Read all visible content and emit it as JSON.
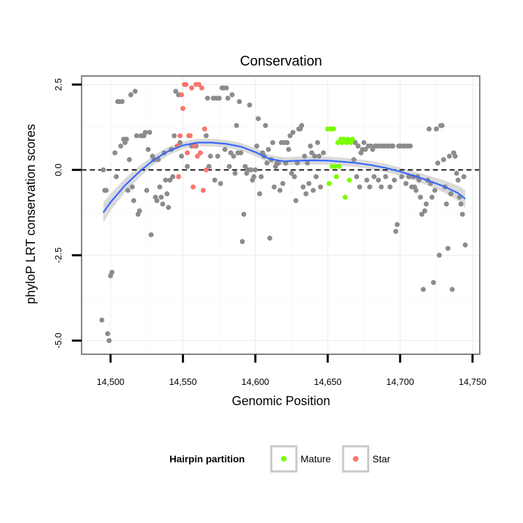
{
  "chart_data": {
    "type": "scatter",
    "title": "Conservation",
    "xlabel": "Genomic Position",
    "ylabel": "phyloP LRT conservation scores",
    "xlim": [
      14480,
      14755
    ],
    "ylim": [
      -5.4,
      2.75
    ],
    "x_ticks": [
      14500,
      14550,
      14600,
      14650,
      14700,
      14750
    ],
    "x_tick_labels": [
      "14,500",
      "14,550",
      "14,600",
      "14,650",
      "14,700",
      "14,750"
    ],
    "y_ticks": [
      2.5,
      0.0,
      -2.5,
      -5.0
    ],
    "y_tick_labels": [
      "2.5",
      "0.0",
      "-2.5",
      "-5.0"
    ],
    "reference_line": {
      "y": 0.0,
      "style": "dashed"
    },
    "legend": {
      "title": "Hairpin partition",
      "position": "bottom",
      "entries": [
        {
          "label": "Mature",
          "color": "#7cfc00"
        },
        {
          "label": "Star",
          "color": "#f8766d"
        }
      ]
    },
    "colors": {
      "other": "#8c8c8c",
      "mature": "#7cfc00",
      "star": "#f8766d",
      "smooth": "#3366ff",
      "ribbon": "#d3d3d3"
    },
    "series": [
      {
        "name": "Other",
        "points": [
          [
            14494,
            -4.4
          ],
          [
            14495,
            0.0
          ],
          [
            14496,
            -0.6
          ],
          [
            14497,
            -0.6
          ],
          [
            14498,
            -4.8
          ],
          [
            14499,
            -5.0
          ],
          [
            14500,
            -3.1
          ],
          [
            14501,
            -3.0
          ],
          [
            14503,
            0.5
          ],
          [
            14504,
            -0.2
          ],
          [
            14505,
            2.0
          ],
          [
            14506,
            2.0
          ],
          [
            14507,
            0.7
          ],
          [
            14508,
            2.0
          ],
          [
            14509,
            0.9
          ],
          [
            14510,
            0.8
          ],
          [
            14511,
            0.9
          ],
          [
            14512,
            -0.6
          ],
          [
            14513,
            0.3
          ],
          [
            14514,
            2.2
          ],
          [
            14515,
            -0.5
          ],
          [
            14516,
            -0.9
          ],
          [
            14517,
            2.3
          ],
          [
            14518,
            1.0
          ],
          [
            14519,
            -1.3
          ],
          [
            14520,
            -1.2
          ],
          [
            14521,
            1.0
          ],
          [
            14522,
            1.0
          ],
          [
            14523,
            1.0
          ],
          [
            14524,
            1.1
          ],
          [
            14525,
            -0.6
          ],
          [
            14526,
            0.6
          ],
          [
            14527,
            1.1
          ],
          [
            14528,
            -1.9
          ],
          [
            14529,
            0.4
          ],
          [
            14530,
            0.3
          ],
          [
            14531,
            -0.8
          ],
          [
            14532,
            -0.9
          ],
          [
            14533,
            0.3
          ],
          [
            14534,
            -0.5
          ],
          [
            14535,
            -0.8
          ],
          [
            14536,
            -1.0
          ],
          [
            14537,
            0.5
          ],
          [
            14538,
            -0.3
          ],
          [
            14539,
            -0.7
          ],
          [
            14540,
            -1.1
          ],
          [
            14541,
            -0.3
          ],
          [
            14542,
            0.6
          ],
          [
            14543,
            -0.2
          ],
          [
            14544,
            1.0
          ],
          [
            14545,
            2.3
          ],
          [
            14547,
            2.2
          ],
          [
            14548,
            0.8
          ],
          [
            14549,
            0.4
          ],
          [
            14553,
            0.1
          ],
          [
            14556,
            0.7
          ],
          [
            14559,
            0.7
          ],
          [
            14566,
            1.0
          ],
          [
            14567,
            2.1
          ],
          [
            14568,
            0.1
          ],
          [
            14569,
            0.4
          ],
          [
            14571,
            2.1
          ],
          [
            14572,
            -0.3
          ],
          [
            14573,
            2.1
          ],
          [
            14574,
            0.4
          ],
          [
            14575,
            2.1
          ],
          [
            14576,
            -0.4
          ],
          [
            14577,
            2.4
          ],
          [
            14578,
            2.4
          ],
          [
            14579,
            0.6
          ],
          [
            14580,
            2.4
          ],
          [
            14581,
            2.1
          ],
          [
            14582,
            0.1
          ],
          [
            14583,
            0.5
          ],
          [
            14584,
            2.2
          ],
          [
            14585,
            0.4
          ],
          [
            14586,
            -0.1
          ],
          [
            14587,
            1.3
          ],
          [
            14588,
            0.5
          ],
          [
            14589,
            2.0
          ],
          [
            14590,
            0.5
          ],
          [
            14591,
            -2.1
          ],
          [
            14592,
            -1.3
          ],
          [
            14593,
            0.1
          ],
          [
            14594,
            -0.1
          ],
          [
            14595,
            0.0
          ],
          [
            14596,
            1.9
          ],
          [
            14597,
            0.0
          ],
          [
            14598,
            -0.3
          ],
          [
            14599,
            -0.2
          ],
          [
            14600,
            0.0
          ],
          [
            14601,
            0.7
          ],
          [
            14602,
            1.5
          ],
          [
            14603,
            -0.7
          ],
          [
            14604,
            -0.2
          ],
          [
            14605,
            0.5
          ],
          [
            14606,
            0.4
          ],
          [
            14607,
            1.3
          ],
          [
            14608,
            0.2
          ],
          [
            14609,
            0.6
          ],
          [
            14610,
            -2.0
          ],
          [
            14611,
            0.3
          ],
          [
            14612,
            0.8
          ],
          [
            14613,
            -0.5
          ],
          [
            14614,
            0.1
          ],
          [
            14615,
            0.2
          ],
          [
            14616,
            0.2
          ],
          [
            14617,
            -0.6
          ],
          [
            14618,
            0.8
          ],
          [
            14619,
            -0.4
          ],
          [
            14620,
            0.8
          ],
          [
            14621,
            0.2
          ],
          [
            14622,
            0.8
          ],
          [
            14623,
            0.6
          ],
          [
            14624,
            1.0
          ],
          [
            14625,
            -0.1
          ],
          [
            14626,
            1.1
          ],
          [
            14627,
            -0.2
          ],
          [
            14628,
            -0.9
          ],
          [
            14629,
            0.2
          ],
          [
            14630,
            1.2
          ],
          [
            14631,
            1.2
          ],
          [
            14632,
            1.3
          ],
          [
            14633,
            -0.5
          ],
          [
            14634,
            0.4
          ],
          [
            14635,
            -0.7
          ],
          [
            14636,
            0.2
          ],
          [
            14637,
            -0.4
          ],
          [
            14638,
            0.7
          ],
          [
            14639,
            0.5
          ],
          [
            14640,
            -0.6
          ],
          [
            14641,
            0.4
          ],
          [
            14642,
            -0.2
          ],
          [
            14643,
            0.8
          ],
          [
            14644,
            0.4
          ],
          [
            14645,
            -0.5
          ],
          [
            14647,
            0.5
          ],
          [
            14668,
            0.3
          ],
          [
            14669,
            0.8
          ],
          [
            14670,
            -0.2
          ],
          [
            14671,
            0.7
          ],
          [
            14672,
            -0.5
          ],
          [
            14673,
            0.5
          ],
          [
            14674,
            0.6
          ],
          [
            14675,
            0.8
          ],
          [
            14676,
            0.6
          ],
          [
            14677,
            -0.3
          ],
          [
            14678,
            0.7
          ],
          [
            14679,
            -0.5
          ],
          [
            14680,
            0.7
          ],
          [
            14681,
            0.6
          ],
          [
            14682,
            -0.2
          ],
          [
            14683,
            0.7
          ],
          [
            14684,
            0.7
          ],
          [
            14685,
            -0.3
          ],
          [
            14686,
            0.7
          ],
          [
            14687,
            -0.5
          ],
          [
            14688,
            0.7
          ],
          [
            14689,
            0.7
          ],
          [
            14690,
            -0.2
          ],
          [
            14691,
            0.7
          ],
          [
            14692,
            0.7
          ],
          [
            14693,
            -0.5
          ],
          [
            14694,
            0.7
          ],
          [
            14695,
            0.7
          ],
          [
            14696,
            -0.3
          ],
          [
            14697,
            -1.8
          ],
          [
            14698,
            -1.6
          ],
          [
            14699,
            0.7
          ],
          [
            14700,
            0.7
          ],
          [
            14701,
            -0.2
          ],
          [
            14702,
            0.7
          ],
          [
            14703,
            0.7
          ],
          [
            14704,
            -0.4
          ],
          [
            14705,
            0.7
          ],
          [
            14706,
            -0.2
          ],
          [
            14707,
            0.7
          ],
          [
            14708,
            -0.5
          ],
          [
            14709,
            -0.2
          ],
          [
            14710,
            -0.5
          ],
          [
            14711,
            -0.6
          ],
          [
            14712,
            -0.2
          ],
          [
            14713,
            -0.3
          ],
          [
            14714,
            -0.8
          ],
          [
            14715,
            -1.3
          ],
          [
            14716,
            -3.5
          ],
          [
            14717,
            -1.2
          ],
          [
            14718,
            -1.0
          ],
          [
            14719,
            -0.3
          ],
          [
            14720,
            1.2
          ],
          [
            14721,
            -0.4
          ],
          [
            14722,
            -0.8
          ],
          [
            14723,
            -3.3
          ],
          [
            14724,
            -0.6
          ],
          [
            14725,
            1.2
          ],
          [
            14726,
            0.2
          ],
          [
            14727,
            -2.5
          ],
          [
            14728,
            1.3
          ],
          [
            14729,
            1.3
          ],
          [
            14730,
            0.3
          ],
          [
            14731,
            -0.5
          ],
          [
            14732,
            -1.0
          ],
          [
            14733,
            -2.3
          ],
          [
            14734,
            0.4
          ],
          [
            14735,
            -0.7
          ],
          [
            14736,
            -3.5
          ],
          [
            14737,
            0.5
          ],
          [
            14738,
            0.4
          ],
          [
            14739,
            -0.1
          ],
          [
            14740,
            -0.3
          ],
          [
            14741,
            -0.8
          ],
          [
            14742,
            -1.0
          ],
          [
            14743,
            -1.3
          ],
          [
            14744,
            -0.2
          ],
          [
            14745,
            -2.2
          ]
        ]
      },
      {
        "name": "Mature",
        "points": [
          [
            14650,
            1.2
          ],
          [
            14651,
            -0.4
          ],
          [
            14652,
            1.2
          ],
          [
            14653,
            0.1
          ],
          [
            14654,
            1.2
          ],
          [
            14655,
            0.1
          ],
          [
            14656,
            -0.2
          ],
          [
            14657,
            0.8
          ],
          [
            14658,
            0.1
          ],
          [
            14659,
            0.9
          ],
          [
            14660,
            0.8
          ],
          [
            14661,
            0.9
          ],
          [
            14662,
            -0.8
          ],
          [
            14663,
            0.8
          ],
          [
            14664,
            0.9
          ],
          [
            14665,
            -0.3
          ],
          [
            14666,
            0.8
          ],
          [
            14667,
            0.9
          ]
        ]
      },
      {
        "name": "Star",
        "points": [
          [
            14546,
            0.7
          ],
          [
            14547,
            -0.2
          ],
          [
            14548,
            1.0
          ],
          [
            14549,
            2.2
          ],
          [
            14550,
            1.8
          ],
          [
            14551,
            2.5
          ],
          [
            14552,
            2.5
          ],
          [
            14553,
            0.5
          ],
          [
            14554,
            1.0
          ],
          [
            14555,
            1.0
          ],
          [
            14556,
            2.4
          ],
          [
            14557,
            -0.5
          ],
          [
            14558,
            0.7
          ],
          [
            14559,
            2.5
          ],
          [
            14560,
            0.4
          ],
          [
            14561,
            2.5
          ],
          [
            14562,
            0.5
          ],
          [
            14563,
            2.4
          ],
          [
            14564,
            -0.6
          ],
          [
            14565,
            1.2
          ],
          [
            14566,
            0.0
          ]
        ]
      }
    ],
    "smooth": {
      "x": [
        14495,
        14500,
        14510,
        14520,
        14530,
        14540,
        14550,
        14560,
        14570,
        14580,
        14590,
        14600,
        14610,
        14620,
        14630,
        14640,
        14650,
        14660,
        14670,
        14680,
        14690,
        14700,
        14710,
        14720,
        14730,
        14740,
        14745
      ],
      "y": [
        -1.25,
        -0.95,
        -0.45,
        -0.05,
        0.3,
        0.55,
        0.72,
        0.8,
        0.8,
        0.76,
        0.68,
        0.52,
        0.32,
        0.25,
        0.27,
        0.28,
        0.27,
        0.24,
        0.2,
        0.14,
        0.06,
        -0.05,
        -0.18,
        -0.32,
        -0.48,
        -0.68,
        -0.85
      ],
      "band": [
        0.3,
        0.25,
        0.2,
        0.17,
        0.14,
        0.12,
        0.11,
        0.11,
        0.11,
        0.11,
        0.11,
        0.12,
        0.12,
        0.12,
        0.12,
        0.12,
        0.12,
        0.12,
        0.12,
        0.12,
        0.12,
        0.12,
        0.13,
        0.15,
        0.18,
        0.22,
        0.26
      ]
    }
  }
}
